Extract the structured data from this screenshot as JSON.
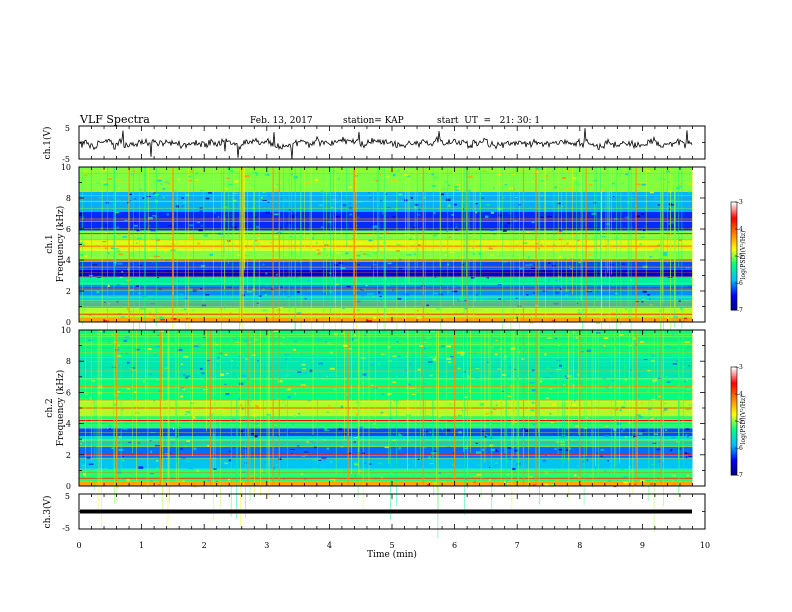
{
  "header": {
    "title": "VLF Spectra",
    "date": "Feb. 13, 2017",
    "station": "station= KAP",
    "start": "start  UT  =   21: 30: 1"
  },
  "chart_data": [
    {
      "type": "line",
      "panel": "ch1-waveform",
      "ylabel": "ch.1(V)",
      "ylim": [
        -5,
        5
      ],
      "yticks": [
        "5",
        "-5"
      ],
      "xlim": [
        0,
        10
      ],
      "x_start": 0,
      "x_end": 9.8,
      "approx_mean": -0.2,
      "approx_amplitude": 1.8,
      "color": "#000000"
    },
    {
      "type": "heatmap",
      "panel": "ch1-spectrogram",
      "ylabel_line1": "ch.1",
      "ylabel_line2": "Frequency (kHz)",
      "ylim": [
        0,
        10
      ],
      "yticks": [
        "0",
        "2",
        "4",
        "6",
        "8",
        "10"
      ],
      "xlim": [
        0,
        10
      ],
      "data_end_min": 9.8,
      "colorbar": {
        "label": "log(PSD)(V²/Hz)",
        "range": [
          -7,
          -3
        ],
        "ticks": [
          "-3",
          "-4",
          "-5",
          "-6",
          "-7"
        ],
        "colormap": [
          "#000080",
          "#0000ff",
          "#00bfff",
          "#00ff80",
          "#ffff00",
          "#ff8000",
          "#ff0000",
          "#ffffff"
        ]
      },
      "bands_khz": [
        {
          "from": 0.0,
          "to": 0.3,
          "level": -4.3
        },
        {
          "from": 0.3,
          "to": 0.9,
          "level": -4.9
        },
        {
          "from": 0.9,
          "to": 1.7,
          "level": -5.7
        },
        {
          "from": 1.7,
          "to": 2.4,
          "level": -6.0
        },
        {
          "from": 2.4,
          "to": 2.9,
          "level": -5.4
        },
        {
          "from": 2.9,
          "to": 3.4,
          "level": -6.6
        },
        {
          "from": 3.4,
          "to": 3.9,
          "level": -6.2
        },
        {
          "from": 3.9,
          "to": 4.6,
          "level": -5.0
        },
        {
          "from": 4.6,
          "to": 5.3,
          "level": -4.8
        },
        {
          "from": 5.3,
          "to": 5.9,
          "level": -5.0
        },
        {
          "from": 5.9,
          "to": 7.1,
          "level": -6.3
        },
        {
          "from": 7.1,
          "to": 8.4,
          "level": -5.9
        },
        {
          "from": 8.4,
          "to": 10.0,
          "level": -5.0
        }
      ],
      "lines_khz": [
        {
          "f": 0.5,
          "level": -3.8
        },
        {
          "f": 2.2,
          "level": -3.6
        },
        {
          "f": 4.0,
          "level": -3.5
        },
        {
          "f": 4.9,
          "level": -4.0
        },
        {
          "f": 5.7,
          "level": -3.7
        },
        {
          "f": 6.5,
          "level": -4.2
        }
      ],
      "sferic_times_min": [
        0.8,
        1.5,
        2.6,
        3.1,
        3.2,
        4.4,
        5.5,
        6.2,
        7.1,
        7.3,
        8.1,
        8.9
      ]
    },
    {
      "type": "heatmap",
      "panel": "ch2-spectrogram",
      "ylabel_line1": "ch.2",
      "ylabel_line2": "Frequency (kHz)",
      "ylim": [
        0,
        10
      ],
      "yticks": [
        "0",
        "2",
        "4",
        "6",
        "8",
        "10"
      ],
      "xlim": [
        0,
        10
      ],
      "data_end_min": 9.8,
      "colorbar": {
        "label": "log(PSD)(V²/Hz)",
        "range": [
          -7,
          -3
        ],
        "ticks": [
          "-3",
          "-4",
          "-5",
          "-6",
          "-7"
        ],
        "colormap": [
          "#000080",
          "#0000ff",
          "#00bfff",
          "#00ff80",
          "#ffff00",
          "#ff8000",
          "#ff0000",
          "#ffffff"
        ]
      },
      "bands_khz": [
        {
          "from": 0.0,
          "to": 0.3,
          "level": -4.3
        },
        {
          "from": 0.3,
          "to": 1.1,
          "level": -5.2
        },
        {
          "from": 1.1,
          "to": 1.8,
          "level": -5.8
        },
        {
          "from": 1.8,
          "to": 2.5,
          "level": -6.1
        },
        {
          "from": 2.5,
          "to": 3.2,
          "level": -5.6
        },
        {
          "from": 3.2,
          "to": 3.7,
          "level": -6.2
        },
        {
          "from": 3.7,
          "to": 4.5,
          "level": -5.2
        },
        {
          "from": 4.5,
          "to": 5.5,
          "level": -4.9
        },
        {
          "from": 5.5,
          "to": 6.9,
          "level": -5.3
        },
        {
          "from": 6.9,
          "to": 8.3,
          "level": -5.5
        },
        {
          "from": 8.3,
          "to": 10.0,
          "level": -5.3
        }
      ],
      "lines_khz": [
        {
          "f": 0.5,
          "level": -3.8
        },
        {
          "f": 2.0,
          "level": -3.7
        },
        {
          "f": 4.2,
          "level": -3.6
        },
        {
          "f": 5.0,
          "level": -3.9
        },
        {
          "f": 6.4,
          "level": -4.2
        }
      ],
      "sferic_times_min": [
        0.6,
        1.3,
        2.1,
        2.7,
        3.1,
        3.2,
        4.3,
        5.5,
        6.0,
        7.1,
        7.3,
        8.0,
        8.9,
        9.3
      ]
    },
    {
      "type": "line",
      "panel": "ch3-waveform",
      "ylabel": "ch.3(V)",
      "ylim": [
        -5,
        5
      ],
      "yticks": [
        "5",
        "-5"
      ],
      "xlim": [
        0,
        10
      ],
      "x_start": 0,
      "x_end": 9.8,
      "value": 0,
      "color": "#000000"
    }
  ],
  "xaxis": {
    "label": "Time (min)",
    "ticks": [
      "0",
      "1",
      "2",
      "3",
      "4",
      "5",
      "6",
      "7",
      "8",
      "9",
      "10"
    ],
    "range": [
      0,
      10
    ]
  }
}
